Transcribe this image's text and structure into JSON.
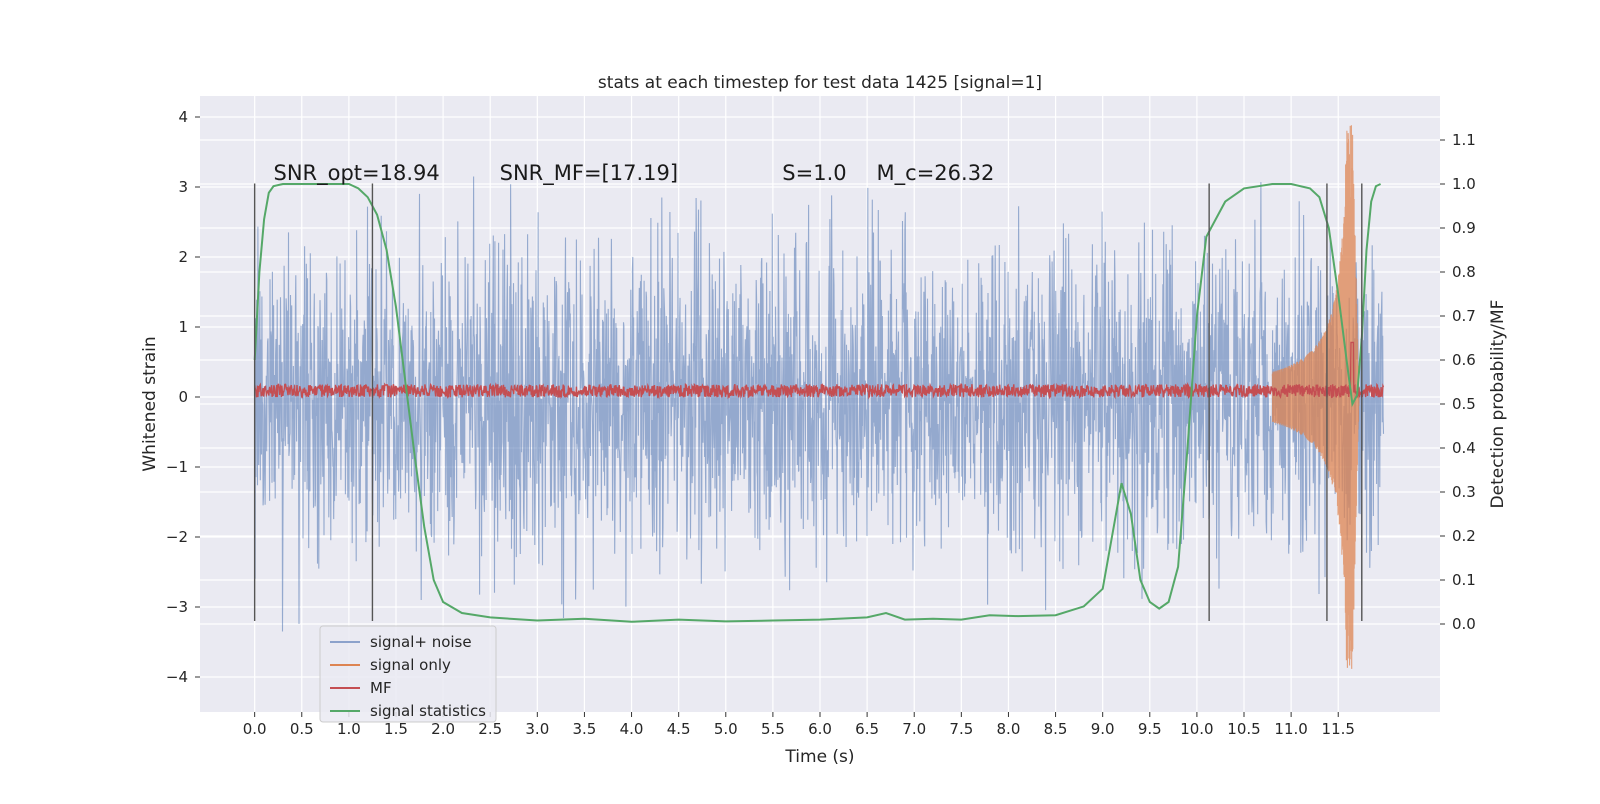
{
  "chart_data": {
    "type": "line",
    "title": "stats at each timestep for test data 1425 [signal=1]",
    "xlabel": "Time (s)",
    "ylabel_left": "Whitened strain",
    "ylabel_right": "Detection probability/MF",
    "xlim": [
      -0.58,
      12.58
    ],
    "ylim_left": [
      -4.5,
      4.3
    ],
    "ylim_right": [
      -0.2,
      1.2
    ],
    "x_ticks": [
      0.0,
      0.5,
      1.0,
      1.5,
      2.0,
      2.5,
      3.0,
      3.5,
      4.0,
      4.5,
      5.0,
      5.5,
      6.0,
      6.5,
      7.0,
      7.5,
      8.0,
      8.5,
      9.0,
      9.5,
      10.0,
      10.5,
      11.0,
      11.5
    ],
    "x_tick_labels": [
      "0.0",
      "0.5",
      "1.0",
      "1.5",
      "2.0",
      "2.5",
      "3.0",
      "3.5",
      "4.0",
      "4.5",
      "5.0",
      "5.5",
      "6.0",
      "6.5",
      "7.0",
      "7.5",
      "8.0",
      "8.5",
      "9.0",
      "9.5",
      "10.0",
      "10.5",
      "11.0",
      "11.5"
    ],
    "y_ticks_left": [
      -4,
      -3,
      -2,
      -1,
      0,
      1,
      2,
      3,
      4
    ],
    "y_tick_labels_left": [
      "−4",
      "−3",
      "−2",
      "−1",
      "0",
      "1",
      "2",
      "3",
      "4"
    ],
    "y_ticks_right": [
      0.0,
      0.1,
      0.2,
      0.3,
      0.4,
      0.5,
      0.6,
      0.7,
      0.8,
      0.9,
      1.0,
      1.1
    ],
    "y_tick_labels_right": [
      "0.0",
      "0.1",
      "0.2",
      "0.3",
      "0.4",
      "0.5",
      "0.6",
      "0.7",
      "0.8",
      "0.9",
      "1.0",
      "1.1"
    ],
    "grid": true,
    "legend_position": "lower-left",
    "annotations": [
      {
        "text": "SNR_opt=18.94",
        "x": 0.2,
        "y": 3.1
      },
      {
        "text": "SNR_MF=[17.19]",
        "x": 2.6,
        "y": 3.1
      },
      {
        "text": "S=1.0",
        "x": 5.6,
        "y": 3.1
      },
      {
        "text": "M_c=26.32",
        "x": 6.6,
        "y": 3.1
      }
    ],
    "vertical_markers_x": [
      0.0,
      1.25,
      10.13,
      11.38,
      11.75
    ],
    "vertical_markers_y_range": [
      -3.2,
      3.05
    ],
    "series": [
      {
        "name": "signal+ noise",
        "color": "#4c72b0",
        "axis": "left",
        "description_values": {
          "x_range": [
            0.0,
            11.98
          ],
          "typical_amplitude": 1.8,
          "peak_max": 3.7,
          "peak_min": -3.35
        }
      },
      {
        "name": "signal only",
        "color": "#dd8452",
        "axis": "left",
        "description_values": {
          "x_range": [
            10.8,
            11.72
          ],
          "peak_time": 11.65,
          "peak_max": 3.9,
          "peak_min": -3.9
        }
      },
      {
        "name": "MF",
        "color": "#c44e52",
        "axis": "right",
        "description_values": {
          "x_range": [
            0.0,
            11.98
          ],
          "baseline": 0.53,
          "peak_time": 11.65,
          "peak_value": 0.64
        }
      },
      {
        "name": "signal statistics",
        "color": "#55a868",
        "axis": "right",
        "x": [
          0.0,
          0.05,
          0.1,
          0.15,
          0.2,
          0.3,
          0.5,
          0.8,
          1.0,
          1.1,
          1.2,
          1.3,
          1.4,
          1.5,
          1.6,
          1.7,
          1.8,
          1.9,
          2.0,
          2.2,
          2.5,
          3.0,
          3.5,
          4.0,
          4.5,
          5.0,
          5.5,
          6.0,
          6.5,
          6.7,
          6.9,
          7.2,
          7.5,
          7.8,
          8.1,
          8.5,
          8.8,
          9.0,
          9.1,
          9.2,
          9.3,
          9.4,
          9.5,
          9.6,
          9.7,
          9.8,
          9.9,
          10.0,
          10.1,
          10.3,
          10.5,
          10.8,
          11.0,
          11.2,
          11.3,
          11.4,
          11.5,
          11.6,
          11.65,
          11.7,
          11.75,
          11.8,
          11.85,
          11.9,
          11.95
        ],
        "values": [
          0.6,
          0.8,
          0.92,
          0.98,
          0.995,
          1.0,
          1.0,
          1.0,
          1.0,
          0.99,
          0.97,
          0.93,
          0.85,
          0.72,
          0.55,
          0.38,
          0.22,
          0.1,
          0.05,
          0.025,
          0.015,
          0.008,
          0.012,
          0.005,
          0.01,
          0.006,
          0.008,
          0.01,
          0.015,
          0.025,
          0.01,
          0.012,
          0.01,
          0.02,
          0.018,
          0.02,
          0.04,
          0.08,
          0.2,
          0.32,
          0.25,
          0.1,
          0.05,
          0.035,
          0.05,
          0.13,
          0.4,
          0.7,
          0.88,
          0.96,
          0.99,
          1.0,
          1.0,
          0.99,
          0.97,
          0.9,
          0.75,
          0.58,
          0.5,
          0.52,
          0.65,
          0.85,
          0.96,
          0.995,
          1.0
        ]
      }
    ]
  }
}
